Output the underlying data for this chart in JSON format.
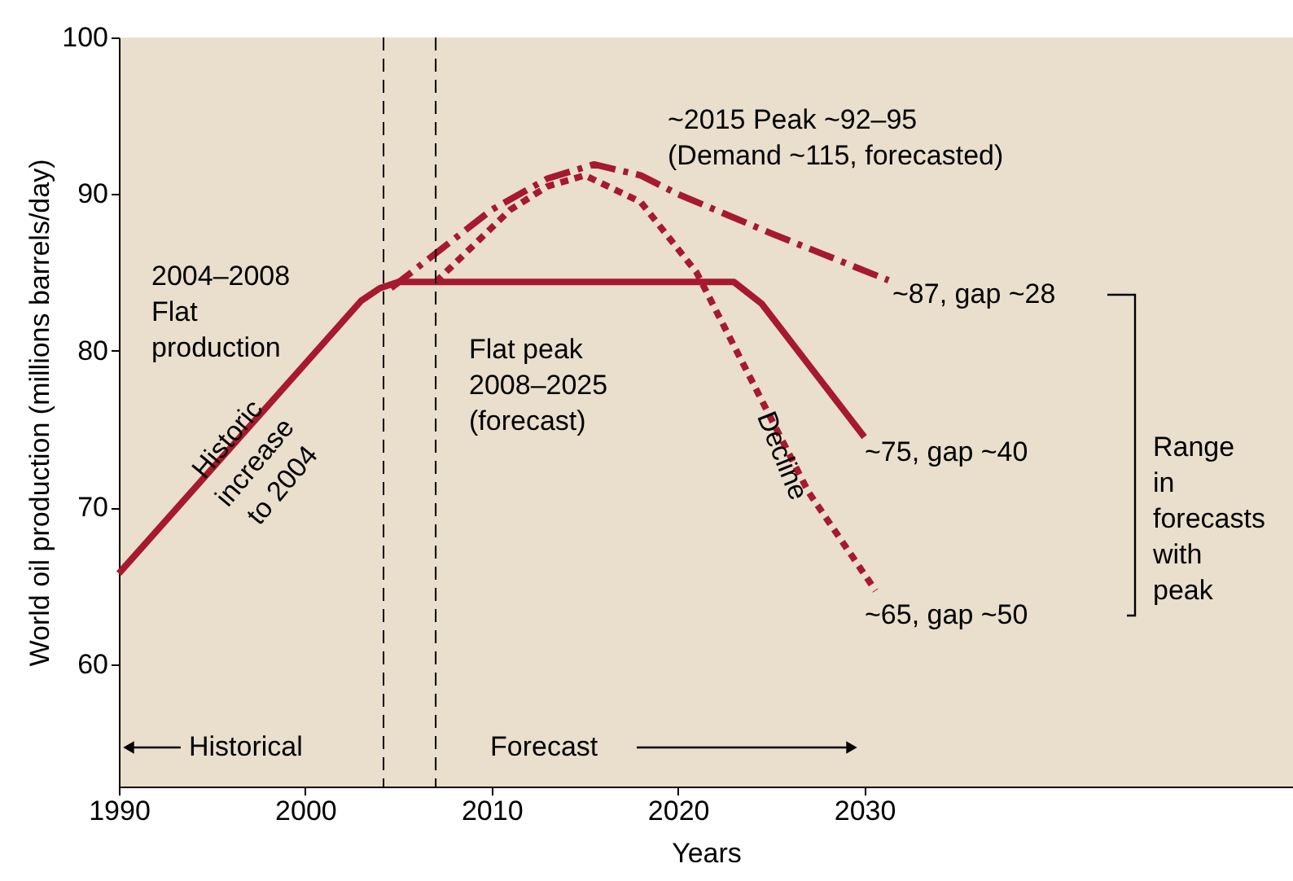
{
  "chart_data": {
    "type": "line",
    "xlabel": "Years",
    "ylabel": "World oil production (millions barrels/day)",
    "xlim": [
      1990,
      2053
    ],
    "ylim": [
      52.2,
      100
    ],
    "xticks": [
      1990,
      2000,
      2010,
      2020,
      2030
    ],
    "yticks": [
      60,
      70,
      80,
      90,
      100
    ],
    "grid": false,
    "marker": "none",
    "series": [
      {
        "color": "#a6192e",
        "line_style": "solid",
        "x": [
          1990,
          2003,
          2004,
          2005,
          2023,
          2024.5,
          2030
        ],
        "values": [
          65.8,
          83.2,
          84,
          84.4,
          84.4,
          83,
          74.5
        ]
      },
      {
        "color": "#a6192e",
        "line_style": "dashed",
        "x": [
          2004.6,
          2010,
          2013,
          2015.5,
          2018,
          2020,
          2025,
          2031.3
        ],
        "values": [
          84,
          89,
          91,
          91.9,
          91.2,
          90,
          87.5,
          84.5
        ]
      },
      {
        "color": "#a6192e",
        "line_style": "dotted",
        "x": [
          2007,
          2011,
          2013,
          2015,
          2018,
          2021,
          2024,
          2027,
          2030.6
        ],
        "values": [
          84.4,
          89,
          90.5,
          91.2,
          89.5,
          85,
          78,
          71,
          64.7
        ]
      }
    ],
    "ref_lines": [
      {
        "axis": "x",
        "value": 2004.2,
        "color": "#000000",
        "line_style": "dashed"
      },
      {
        "axis": "x",
        "value": 2007,
        "color": "#000000",
        "line_style": "dashed"
      }
    ],
    "annotations": [
      "~2015 Peak ~92–95\n(Demand ~115, forecasted)",
      "2004–2008\nFlat\nproduction",
      "Flat peak\n2008–2025\n(forecast)",
      "Historic\nincrease\nto 2004",
      "Decline",
      "~87, gap ~28",
      "~75, gap ~40",
      "~65, gap ~50",
      "Range\nin\nforecasts\nwith\npeak",
      "Historical",
      "Forecast"
    ]
  }
}
